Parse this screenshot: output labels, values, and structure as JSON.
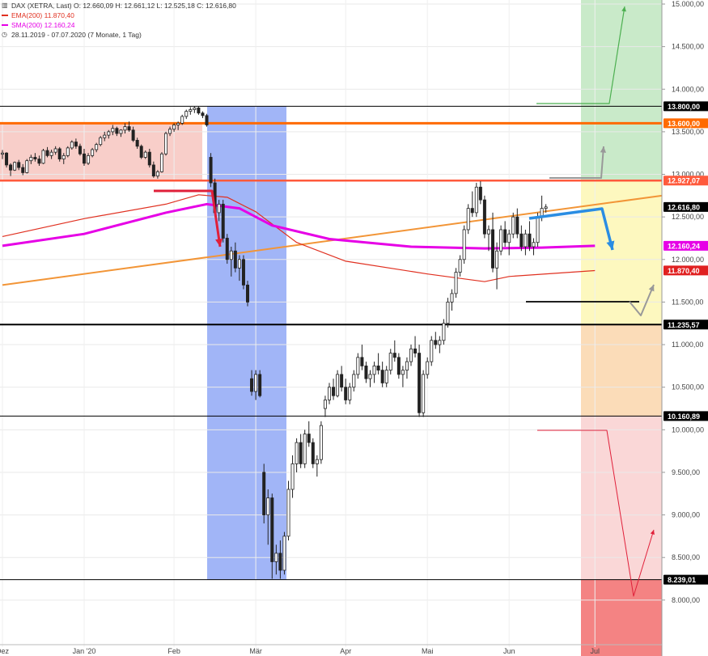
{
  "legend": {
    "header": "DAX (XETRA, Last)  O: 12.660,09  H: 12.661,12  L: 12.525,18  C: 12.616,80",
    "ema": "EMA(200)  11.870,40",
    "sma": "SMA(200)  12.160,24",
    "period": "28.11.2019 - 07.07.2020   (7 Monate, 1 Tag)"
  },
  "chart_data": {
    "type": "candlestick",
    "title": "DAX (XETRA, Last)",
    "ohlc_last": {
      "open": 12660.09,
      "high": 12661.12,
      "low": 12525.18,
      "close": 12616.8
    },
    "ylim": [
      7700,
      15000
    ],
    "y_ticks": [
      {
        "v": 15000,
        "label": "15.000,00"
      },
      {
        "v": 14500,
        "label": "14.500,00"
      },
      {
        "v": 14000,
        "label": "14.000,00"
      },
      {
        "v": 13500,
        "label": "13.500,00"
      },
      {
        "v": 13000,
        "label": "13.000,00"
      },
      {
        "v": 12500,
        "label": "12.500,00"
      },
      {
        "v": 12000,
        "label": "12.000,00"
      },
      {
        "v": 11500,
        "label": "11.500,00"
      },
      {
        "v": 11000,
        "label": "11.000,00"
      },
      {
        "v": 10500,
        "label": "10.500,00"
      },
      {
        "v": 10000,
        "label": "10.000,00"
      },
      {
        "v": 9500,
        "label": "9.500,00"
      },
      {
        "v": 9000,
        "label": "9.000,00"
      },
      {
        "v": 8500,
        "label": "8.500,00"
      },
      {
        "v": 8000,
        "label": "8.000,00"
      }
    ],
    "x_ticks": [
      {
        "i": 0,
        "label": "Dez"
      },
      {
        "i": 20,
        "label": "Jan '20"
      },
      {
        "i": 42,
        "label": "Feb"
      },
      {
        "i": 62,
        "label": "Mär"
      },
      {
        "i": 84,
        "label": "Apr"
      },
      {
        "i": 104,
        "label": "Mai"
      },
      {
        "i": 124,
        "label": "Jun"
      },
      {
        "i": 145,
        "label": "Jul"
      }
    ],
    "candles": [
      [
        13236,
        13285,
        13180,
        13250
      ],
      [
        13250,
        13260,
        13080,
        13110
      ],
      [
        13110,
        13130,
        12980,
        13050
      ],
      [
        13050,
        13150,
        13040,
        13140
      ],
      [
        13140,
        13170,
        13050,
        13080
      ],
      [
        13080,
        13120,
        12990,
        13020
      ],
      [
        13020,
        13180,
        13010,
        13160
      ],
      [
        13160,
        13230,
        13120,
        13200
      ],
      [
        13200,
        13250,
        13150,
        13180
      ],
      [
        13180,
        13220,
        13100,
        13130
      ],
      [
        13130,
        13300,
        13120,
        13280
      ],
      [
        13280,
        13320,
        13200,
        13220
      ],
      [
        13220,
        13290,
        13180,
        13260
      ],
      [
        13260,
        13330,
        13230,
        13300
      ],
      [
        13300,
        13320,
        13150,
        13180
      ],
      [
        13180,
        13250,
        13120,
        13220
      ],
      [
        13220,
        13330,
        13200,
        13310
      ],
      [
        13310,
        13400,
        13290,
        13380
      ],
      [
        13380,
        13420,
        13300,
        13330
      ],
      [
        13330,
        13360,
        13220,
        13240
      ],
      [
        13240,
        13300,
        13100,
        13130
      ],
      [
        13130,
        13250,
        13110,
        13220
      ],
      [
        13220,
        13310,
        13200,
        13290
      ],
      [
        13290,
        13370,
        13260,
        13350
      ],
      [
        13350,
        13450,
        13330,
        13430
      ],
      [
        13430,
        13500,
        13390,
        13460
      ],
      [
        13460,
        13520,
        13420,
        13500
      ],
      [
        13500,
        13580,
        13460,
        13540
      ],
      [
        13540,
        13560,
        13450,
        13480
      ],
      [
        13480,
        13530,
        13440,
        13520
      ],
      [
        13520,
        13600,
        13480,
        13560
      ],
      [
        13560,
        13620,
        13500,
        13520
      ],
      [
        13520,
        13560,
        13380,
        13400
      ],
      [
        13400,
        13430,
        13300,
        13330
      ],
      [
        13330,
        13350,
        13180,
        13200
      ],
      [
        13200,
        13280,
        13180,
        13260
      ],
      [
        13260,
        13300,
        13080,
        13110
      ],
      [
        13110,
        13150,
        12960,
        12980
      ],
      [
        12980,
        13050,
        12950,
        13030
      ],
      [
        13030,
        13260,
        13020,
        13240
      ],
      [
        13240,
        13500,
        13220,
        13480
      ],
      [
        13480,
        13560,
        13450,
        13530
      ],
      [
        13530,
        13600,
        13500,
        13580
      ],
      [
        13580,
        13620,
        13520,
        13600
      ],
      [
        13600,
        13700,
        13580,
        13680
      ],
      [
        13680,
        13760,
        13650,
        13740
      ],
      [
        13740,
        13790,
        13700,
        13760
      ],
      [
        13760,
        13800,
        13720,
        13780
      ],
      [
        13780,
        13795,
        13700,
        13720
      ],
      [
        13720,
        13740,
        13660,
        13690
      ],
      [
        13690,
        13710,
        13560,
        13580
      ],
      [
        13200,
        13250,
        12850,
        12900
      ],
      [
        12900,
        12950,
        12500,
        12550
      ],
      [
        12550,
        12700,
        12450,
        12650
      ],
      [
        12650,
        12700,
        12200,
        12250
      ],
      [
        12250,
        12300,
        11950,
        12000
      ],
      [
        12000,
        12150,
        11800,
        12100
      ],
      [
        12100,
        12200,
        11850,
        11900
      ],
      [
        11900,
        12050,
        11750,
        12000
      ],
      [
        12000,
        12050,
        11650,
        11700
      ],
      [
        11700,
        11750,
        11450,
        11500
      ],
      [
        10600,
        10700,
        10400,
        10450
      ],
      [
        10450,
        10700,
        10350,
        10650
      ],
      [
        10650,
        10700,
        10380,
        10400
      ],
      [
        9500,
        9600,
        8900,
        9000
      ],
      [
        9000,
        9300,
        8650,
        9200
      ],
      [
        9200,
        9250,
        8250,
        8450
      ],
      [
        8450,
        8650,
        8300,
        8550
      ],
      [
        8550,
        8700,
        8250,
        8350
      ],
      [
        8350,
        8800,
        8300,
        8750
      ],
      [
        8750,
        9400,
        8700,
        9300
      ],
      [
        9300,
        9700,
        9200,
        9600
      ],
      [
        9600,
        9900,
        9500,
        9850
      ],
      [
        9850,
        9950,
        9550,
        9600
      ],
      [
        9600,
        10000,
        9550,
        9950
      ],
      [
        9950,
        10100,
        9800,
        9850
      ],
      [
        9850,
        9900,
        9550,
        9600
      ],
      [
        9600,
        9700,
        9450,
        9650
      ],
      [
        9650,
        10100,
        9600,
        10050
      ],
      [
        10250,
        10400,
        10150,
        10350
      ],
      [
        10350,
        10550,
        10300,
        10500
      ],
      [
        10500,
        10600,
        10350,
        10400
      ],
      [
        10400,
        10700,
        10380,
        10650
      ],
      [
        10650,
        10750,
        10450,
        10500
      ],
      [
        10500,
        10600,
        10300,
        10350
      ],
      [
        10350,
        10550,
        10300,
        10500
      ],
      [
        10500,
        10700,
        10450,
        10650
      ],
      [
        10650,
        10900,
        10600,
        10850
      ],
      [
        10850,
        11000,
        10700,
        10750
      ],
      [
        10750,
        10800,
        10550,
        10600
      ],
      [
        10600,
        10700,
        10500,
        10650
      ],
      [
        10650,
        10800,
        10550,
        10750
      ],
      [
        10750,
        10900,
        10650,
        10700
      ],
      [
        10700,
        10800,
        10500,
        10550
      ],
      [
        10550,
        10750,
        10500,
        10700
      ],
      [
        10700,
        10950,
        10650,
        10900
      ],
      [
        10900,
        11050,
        10800,
        10850
      ],
      [
        10850,
        10900,
        10600,
        10650
      ],
      [
        10650,
        10750,
        10500,
        10700
      ],
      [
        10700,
        10850,
        10600,
        10800
      ],
      [
        10800,
        11000,
        10750,
        10950
      ],
      [
        10950,
        11100,
        10850,
        10900
      ],
      [
        10900,
        11000,
        10150,
        10200
      ],
      [
        10200,
        10700,
        10150,
        10650
      ],
      [
        10650,
        10850,
        10600,
        10800
      ],
      [
        10800,
        11100,
        10750,
        11050
      ],
      [
        11050,
        11150,
        10950,
        11000
      ],
      [
        11000,
        11100,
        10900,
        11050
      ],
      [
        11050,
        11300,
        11000,
        11250
      ],
      [
        11250,
        11550,
        11200,
        11500
      ],
      [
        11500,
        11650,
        11400,
        11600
      ],
      [
        11600,
        11900,
        11550,
        11850
      ],
      [
        11850,
        12050,
        11800,
        12000
      ],
      [
        12000,
        12400,
        11950,
        12350
      ],
      [
        12350,
        12650,
        12300,
        12600
      ],
      [
        12600,
        12800,
        12500,
        12550
      ],
      [
        12550,
        12900,
        12500,
        12850
      ],
      [
        12850,
        12920,
        12650,
        12700
      ],
      [
        12700,
        12750,
        12250,
        12300
      ],
      [
        12300,
        12400,
        12100,
        12350
      ],
      [
        12350,
        12550,
        11850,
        11900
      ],
      [
        11900,
        12200,
        11650,
        12100
      ],
      [
        12100,
        12400,
        12050,
        12350
      ],
      [
        12350,
        12450,
        12150,
        12200
      ],
      [
        12200,
        12350,
        12050,
        12300
      ],
      [
        12300,
        12550,
        12250,
        12500
      ],
      [
        12500,
        12600,
        12250,
        12300
      ],
      [
        12300,
        12400,
        12100,
        12150
      ],
      [
        12150,
        12350,
        12050,
        12300
      ],
      [
        12300,
        12450,
        12100,
        12150
      ],
      [
        12150,
        12250,
        12050,
        12200
      ],
      [
        12200,
        12550,
        12150,
        12500
      ],
      [
        12500,
        12750,
        12450,
        12600
      ],
      [
        12600,
        12650,
        12550,
        12617
      ]
    ],
    "ema200": [
      [
        0,
        12270
      ],
      [
        20,
        12480
      ],
      [
        40,
        12650
      ],
      [
        48,
        12760
      ],
      [
        55,
        12730
      ],
      [
        62,
        12560
      ],
      [
        72,
        12200
      ],
      [
        84,
        11980
      ],
      [
        104,
        11830
      ],
      [
        118,
        11740
      ],
      [
        124,
        11800
      ],
      [
        145,
        11870
      ]
    ],
    "sma200": [
      [
        0,
        12160
      ],
      [
        20,
        12300
      ],
      [
        40,
        12550
      ],
      [
        50,
        12650
      ],
      [
        58,
        12600
      ],
      [
        66,
        12400
      ],
      [
        80,
        12240
      ],
      [
        100,
        12150
      ],
      [
        118,
        12130
      ],
      [
        132,
        12140
      ],
      [
        145,
        12160
      ]
    ],
    "trendline": {
      "start": [
        0,
        11700
      ],
      "end": [
        160,
        12750
      ]
    },
    "horizontal_levels": [
      {
        "v": 13800,
        "label": "13.800,00",
        "color": "#000000"
      },
      {
        "v": 13600,
        "label": "13.600,00",
        "color": "#ff6a00"
      },
      {
        "v": 12927.07,
        "label": "12.927,07",
        "color": "#ff5a3c"
      },
      {
        "v": 12616.8,
        "label": "12.616,80",
        "color": "#000000"
      },
      {
        "v": 12160.24,
        "label": "12.160,24",
        "color": "#e600e6"
      },
      {
        "v": 11870.4,
        "label": "11.870,40",
        "color": "#e02020"
      },
      {
        "v": 11235.57,
        "label": "11.235,57",
        "color": "#000000"
      },
      {
        "v": 10160.89,
        "label": "10.160,89",
        "color": "#000000"
      },
      {
        "v": 8239.01,
        "label": "8.239,01",
        "color": "#000000"
      }
    ]
  },
  "colors": {
    "ema": "#e03020",
    "sma": "#e600e6",
    "trendline": "#f29537",
    "covid_zone": "#8aa2f5",
    "resistance_zone": "#f7c6c0",
    "green_zone": "#bfe6bf",
    "yellow_zone": "#fdf7b8",
    "orange_zone": "#fbd8b0",
    "red_zone": "#f9d3d3",
    "deep_red_zone": "#f05a5a",
    "arrow_blue": "#2a8de3",
    "arrow_red": "#e0203a",
    "arrow_grey": "#999999",
    "arrow_green": "#4caf50"
  }
}
